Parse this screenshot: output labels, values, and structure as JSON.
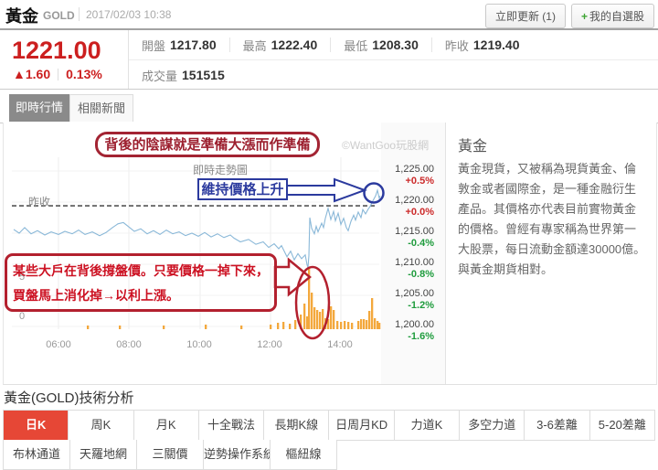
{
  "header": {
    "title": "黃金",
    "symbol": "GOLD",
    "datetime": "2017/02/03 10:38",
    "update_button": "立即更新 (1)",
    "plus": "+",
    "watchlist_button": "我的自選股"
  },
  "quote": {
    "price": "1221.00",
    "change_arrow": "▲",
    "change": "1.60",
    "change_pct": "0.13%",
    "stats": [
      {
        "label": "開盤",
        "value": "1217.80"
      },
      {
        "label": "最高",
        "value": "1222.40"
      },
      {
        "label": "最低",
        "value": "1208.30"
      },
      {
        "label": "昨收",
        "value": "1219.40"
      }
    ],
    "volume_label": "成交量",
    "volume_value": "151515"
  },
  "tabs": [
    {
      "label": "即時行情",
      "active": true
    },
    {
      "label": "相關新聞",
      "active": false
    }
  ],
  "chart": {
    "title": "即時走勢圖",
    "watermark": "©WantGoo玩股網",
    "prev_close_label": "昨收",
    "annotations": {
      "top_box": "背後的陰謀就是準備大漲而作準備",
      "blue_label": "維持價格上升",
      "bottom_box_line1": "某些大戶在背後撐盤價。只要價格一掉下來，",
      "bottom_box_line2": "買盤馬上消化掉→以利上漲。"
    }
  },
  "chart_data": {
    "type": "line",
    "title": "即時走勢圖",
    "x_ticks": [
      "06:00",
      "08:00",
      "10:00",
      "12:00",
      "14:00"
    ],
    "y_axis": [
      {
        "price": "1,225.00",
        "pct": "+0.5%"
      },
      {
        "price": "1,220.00",
        "pct": "+0.0%"
      },
      {
        "price": "1,215.00",
        "pct": "-0.4%"
      },
      {
        "price": "1,210.00",
        "pct": "-0.8%"
      },
      {
        "price": "1,205.00",
        "pct": "-1.2%"
      },
      {
        "price": "1,200.00",
        "pct": "-1.6%"
      }
    ],
    "ylim": [
      1200,
      1225
    ],
    "prev_close": 1219.4,
    "volume_axis_labels": [
      "5",
      "0"
    ],
    "price_points": [
      [
        14,
        1215.6
      ],
      [
        20,
        1215.0
      ],
      [
        26,
        1215.9
      ],
      [
        33,
        1214.9
      ],
      [
        40,
        1215.4
      ],
      [
        48,
        1214.7
      ],
      [
        55,
        1215.2
      ],
      [
        63,
        1214.8
      ],
      [
        70,
        1215.3
      ],
      [
        78,
        1214.9
      ],
      [
        85,
        1215.5
      ],
      [
        92,
        1214.8
      ],
      [
        100,
        1215.2
      ],
      [
        108,
        1214.6
      ],
      [
        115,
        1215.1
      ],
      [
        122,
        1215.9
      ],
      [
        128,
        1216.5
      ],
      [
        134,
        1216.7
      ],
      [
        140,
        1216.0
      ],
      [
        146,
        1215.3
      ],
      [
        153,
        1215.7
      ],
      [
        160,
        1214.9
      ],
      [
        167,
        1215.4
      ],
      [
        174,
        1214.8
      ],
      [
        181,
        1215.5
      ],
      [
        188,
        1214.9
      ],
      [
        195,
        1215.2
      ],
      [
        202,
        1214.6
      ],
      [
        209,
        1215.0
      ],
      [
        216,
        1214.5
      ],
      [
        223,
        1215.1
      ],
      [
        230,
        1214.4
      ],
      [
        237,
        1214.9
      ],
      [
        244,
        1214.3
      ],
      [
        251,
        1214.7
      ],
      [
        255,
        1214.2
      ],
      [
        262,
        1213.6
      ],
      [
        271,
        1214.0
      ],
      [
        279,
        1213.2
      ],
      [
        287,
        1213.6
      ],
      [
        293,
        1212.7
      ],
      [
        299,
        1213.3
      ],
      [
        304,
        1212.5
      ],
      [
        307,
        1213.0
      ],
      [
        313,
        1211.2
      ],
      [
        317,
        1212.1
      ],
      [
        321,
        1210.7
      ],
      [
        325,
        1211.7
      ],
      [
        329,
        1210.9
      ],
      [
        333,
        1211.5
      ],
      [
        335,
        1209.9
      ],
      [
        336,
        1209.5
      ],
      [
        337,
        1211.4
      ],
      [
        338,
        1217.5
      ],
      [
        340,
        1215.8
      ],
      [
        343,
        1214.9
      ],
      [
        345,
        1216.1
      ],
      [
        347,
        1215.2
      ],
      [
        351,
        1216.6
      ],
      [
        353,
        1215.9
      ],
      [
        355,
        1217.4
      ],
      [
        358,
        1219.0
      ],
      [
        361,
        1217.2
      ],
      [
        364,
        1218.5
      ],
      [
        366,
        1217.0
      ],
      [
        369,
        1218.2
      ],
      [
        372,
        1216.4
      ],
      [
        375,
        1217.4
      ],
      [
        378,
        1215.9
      ],
      [
        380,
        1215.4
      ],
      [
        383,
        1216.9
      ],
      [
        386,
        1217.9
      ],
      [
        388,
        1217.1
      ],
      [
        391,
        1218.4
      ],
      [
        394,
        1217.5
      ],
      [
        396,
        1218.8
      ],
      [
        399,
        1218.1
      ],
      [
        402,
        1218.9
      ],
      [
        404,
        1219.3
      ],
      [
        407,
        1220.2
      ],
      [
        410,
        1221.0
      ],
      [
        412,
        1221.9
      ],
      [
        414,
        1220.6
      ],
      [
        415,
        1221.0
      ]
    ],
    "volume_bars": [
      [
        95,
        4
      ],
      [
        130,
        4
      ],
      [
        178,
        4
      ],
      [
        224,
        5
      ],
      [
        263,
        4
      ],
      [
        295,
        5
      ],
      [
        303,
        7
      ],
      [
        309,
        8
      ],
      [
        316,
        6
      ],
      [
        322,
        10
      ],
      [
        328,
        16
      ],
      [
        332,
        28
      ],
      [
        335,
        14
      ],
      [
        337,
        67
      ],
      [
        340,
        40
      ],
      [
        343,
        24
      ],
      [
        346,
        21
      ],
      [
        349,
        19
      ],
      [
        352,
        22
      ],
      [
        355,
        12
      ],
      [
        358,
        11
      ],
      [
        361,
        25
      ],
      [
        364,
        21
      ],
      [
        368,
        9
      ],
      [
        372,
        8
      ],
      [
        376,
        9
      ],
      [
        380,
        8
      ],
      [
        384,
        7
      ],
      [
        391,
        9
      ],
      [
        394,
        11
      ],
      [
        397,
        11
      ],
      [
        400,
        10
      ],
      [
        403,
        20
      ],
      [
        406,
        34
      ],
      [
        409,
        12
      ],
      [
        412,
        9
      ],
      [
        414,
        7
      ]
    ]
  },
  "sidebar": {
    "title": "黃金",
    "description": "黃金現貨，又被稱為現貨黃金、倫敦金或者國際金，是一種金融衍生產品。其價格亦代表目前實物黃金的價格。曾經有專家稱為世界第一大股票，每日流動金額達30000億。與黃金期貨相對。"
  },
  "tech": {
    "heading": "黃金(GOLD)技術分析",
    "active_tab": "日K",
    "tabs_row1": [
      "日K",
      "周K",
      "月K",
      "十全戰法",
      "長期K線",
      "日周月KD",
      "力道K",
      "多空力道",
      "3-6差離",
      "5-20差離"
    ],
    "tabs_row2": [
      "布林通道",
      "天羅地網",
      "三關價",
      "逆勢操作系統",
      "樞紐線"
    ]
  },
  "colors": {
    "up": "#cc2a2a",
    "down": "#1f9c3d",
    "price_line": "#8ab8d8",
    "volume_bar": "#f3a83c",
    "annotation_red": "#b3202e",
    "annotation_blue": "#2b3a9e",
    "active_tab_red": "#e64736",
    "prev_close_line": "#555555"
  }
}
